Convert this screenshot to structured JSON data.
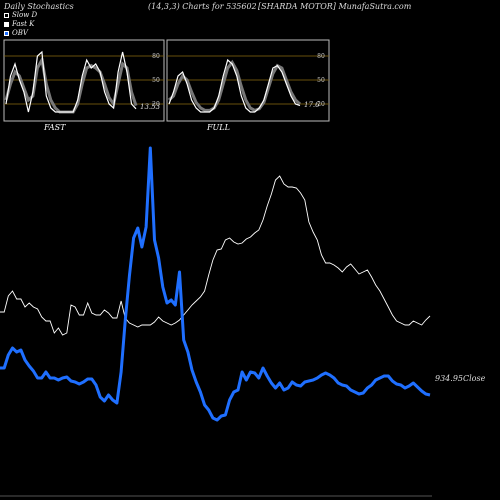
{
  "header": {
    "left": "Daily Stochastics",
    "center": "(14,3,3) Charts for 535602",
    "right": "[SHARDA MOTOR] MunafaSutra.com"
  },
  "legend": [
    {
      "label": "Slow  D",
      "color": "#000000"
    },
    {
      "label": "Fast K",
      "color": "#ffffff"
    },
    {
      "label": "OBV",
      "color": "#1f6fff"
    }
  ],
  "panels": {
    "fast": {
      "label": "FAST",
      "value_label": "13.53",
      "ticks": [
        "80",
        "50",
        "20"
      ]
    },
    "full": {
      "label": "FULL",
      "value_label": "17.6",
      "ticks": [
        "80",
        "50",
        "20"
      ]
    }
  },
  "main": {
    "close_label": "934.95Close"
  },
  "chart_data": [
    {
      "type": "line",
      "title": "FAST",
      "ylim": [
        0,
        100
      ],
      "ticks": [
        20,
        50,
        80
      ],
      "series": [
        {
          "name": "Fast K",
          "values": [
            20,
            55,
            70,
            50,
            35,
            10,
            35,
            80,
            85,
            30,
            15,
            10,
            10,
            10,
            10,
            10,
            25,
            55,
            75,
            65,
            70,
            60,
            35,
            20,
            15,
            60,
            85,
            60,
            20,
            14
          ]
        },
        {
          "name": "Slow  D",
          "values": [
            25,
            45,
            60,
            55,
            40,
            25,
            30,
            65,
            75,
            45,
            25,
            15,
            10,
            10,
            10,
            10,
            20,
            45,
            65,
            68,
            65,
            60,
            45,
            28,
            20,
            45,
            70,
            65,
            35,
            18
          ]
        }
      ]
    },
    {
      "type": "line",
      "title": "FULL",
      "ylim": [
        0,
        100
      ],
      "ticks": [
        20,
        50,
        80
      ],
      "series": [
        {
          "name": "Fast K",
          "values": [
            20,
            35,
            55,
            60,
            45,
            25,
            15,
            10,
            10,
            10,
            15,
            30,
            55,
            75,
            70,
            55,
            30,
            15,
            10,
            10,
            15,
            25,
            45,
            65,
            68,
            60,
            45,
            30,
            20,
            18
          ]
        },
        {
          "name": "Slow  D",
          "values": [
            25,
            30,
            45,
            55,
            50,
            35,
            22,
            15,
            12,
            12,
            15,
            25,
            45,
            65,
            72,
            62,
            42,
            25,
            15,
            12,
            14,
            22,
            40,
            58,
            68,
            65,
            50,
            35,
            25,
            20
          ]
        }
      ]
    },
    {
      "type": "line",
      "title": "",
      "series": [
        {
          "name": "Close",
          "values": [
            312,
            312,
            296,
            291,
            299,
            299,
            307,
            303,
            307,
            309,
            317,
            321,
            321,
            333,
            328,
            335,
            333,
            305,
            307,
            315,
            315,
            303,
            313,
            315,
            315,
            310,
            313,
            318,
            318,
            301,
            318,
            323,
            325,
            327,
            325,
            325,
            325,
            322,
            317,
            321,
            323,
            325,
            323,
            320,
            315,
            310,
            305,
            301,
            297,
            291,
            275,
            260,
            250,
            249,
            240,
            238,
            242,
            244,
            243,
            239,
            237,
            233,
            230,
            220,
            206,
            194,
            180,
            176,
            184,
            187,
            187,
            188,
            193,
            200,
            222,
            232,
            240,
            255,
            263,
            263,
            265,
            268,
            272,
            267,
            264,
            269,
            274,
            272,
            270,
            277,
            285,
            291,
            299,
            307,
            315,
            321,
            323,
            325,
            325,
            321,
            323,
            325,
            320,
            316
          ]
        },
        {
          "name": "OBV",
          "values": [
            368,
            368,
            355,
            348,
            352,
            350,
            360,
            366,
            371,
            378,
            378,
            372,
            378,
            378,
            380,
            378,
            377,
            381,
            382,
            384,
            382,
            379,
            379,
            385,
            397,
            401,
            395,
            400,
            403,
            372,
            321,
            276,
            238,
            228,
            247,
            227,
            148,
            240,
            258,
            287,
            303,
            300,
            305,
            272,
            340,
            352,
            370,
            382,
            392,
            405,
            410,
            418,
            420,
            416,
            415,
            400,
            392,
            390,
            372,
            380,
            372,
            373,
            378,
            368,
            376,
            383,
            388,
            383,
            390,
            388,
            382,
            385,
            386,
            382,
            381,
            380,
            378,
            375,
            373,
            375,
            378,
            383,
            385,
            386,
            390,
            392,
            394,
            393,
            388,
            385,
            380,
            378,
            376,
            376,
            381,
            384,
            385,
            388,
            386,
            383,
            387,
            391,
            394,
            395
          ]
        }
      ]
    }
  ]
}
